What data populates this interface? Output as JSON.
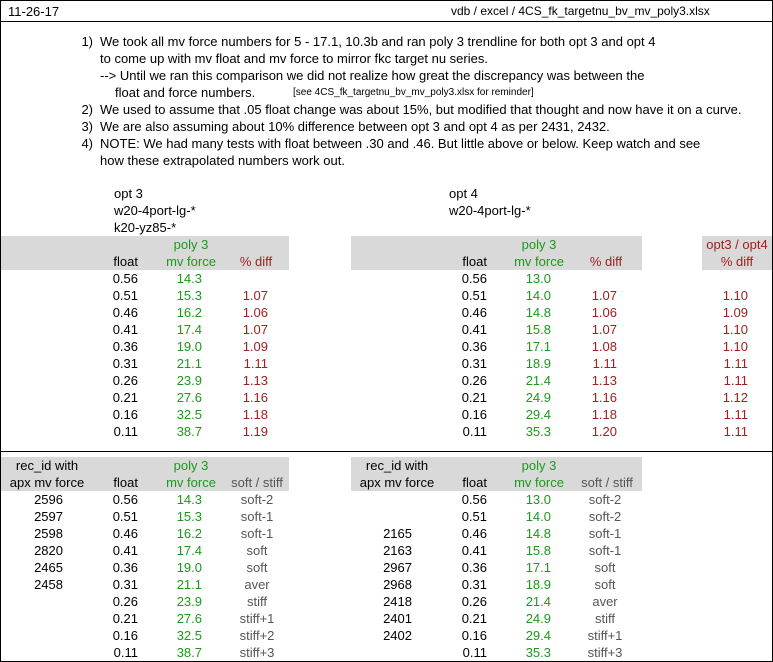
{
  "header": {
    "date": "11-26-17",
    "path": "vdb / excel / 4CS_fk_targetnu_bv_mv_poly3.xlsx"
  },
  "notes": [
    {
      "num": "1)",
      "lines": [
        "We took all mv force numbers for 5 - 17.1, 10.3b and ran poly 3 trendline for both opt 3 and opt 4",
        "to come up with mv float and mv force to mirror fkc target nu series."
      ]
    },
    {
      "num": "",
      "lines": [
        "--> Until we ran this comparison we did not realize how great the discrepancy was between the"
      ]
    },
    {
      "num": "",
      "lines": [
        "float and force numbers."
      ],
      "small": "[see  4CS_fk_targetnu_bv_mv_poly3.xlsx  for reminder]"
    },
    {
      "num": "2)",
      "lines": [
        "We used to assume that .05 float change was about 15%, but modified that thought and now have it on a curve."
      ]
    },
    {
      "num": "3)",
      "lines": [
        "We are also assuming about 10% difference between opt 3 and opt 4 as per 2431, 2432."
      ]
    },
    {
      "num": "4)",
      "lines": [
        "NOTE: We had many tests with float between .30 and .46.  But little above or below.  Keep watch and see",
        "how these extrapolated numbers work out."
      ]
    }
  ],
  "opt3": {
    "title": "opt 3",
    "sub1": "w20-4port-lg-*",
    "sub2": "k20-yz85-*",
    "head_poly": "poly 3",
    "head_float": "float",
    "head_force": "mv force",
    "head_diff": "% diff",
    "rows": [
      {
        "float": "0.56",
        "force": "14.3",
        "diff": ""
      },
      {
        "float": "0.51",
        "force": "15.3",
        "diff": "1.07"
      },
      {
        "float": "0.46",
        "force": "16.2",
        "diff": "1.06"
      },
      {
        "float": "0.41",
        "force": "17.4",
        "diff": "1.07"
      },
      {
        "float": "0.36",
        "force": "19.0",
        "diff": "1.09"
      },
      {
        "float": "0.31",
        "force": "21.1",
        "diff": "1.11"
      },
      {
        "float": "0.26",
        "force": "23.9",
        "diff": "1.13"
      },
      {
        "float": "0.21",
        "force": "27.6",
        "diff": "1.16"
      },
      {
        "float": "0.16",
        "force": "32.5",
        "diff": "1.18"
      },
      {
        "float": "0.11",
        "force": "38.7",
        "diff": "1.19"
      }
    ]
  },
  "opt4": {
    "title": "opt 4",
    "sub1": "w20-4port-lg-*",
    "head_poly": "poly 3",
    "head_float": "float",
    "head_force": "mv force",
    "head_diff": "% diff",
    "head_ratio1": "opt3 / opt4",
    "head_ratio2": "% diff",
    "rows": [
      {
        "float": "0.56",
        "force": "13.0",
        "diff": "",
        "ratio": ""
      },
      {
        "float": "0.51",
        "force": "14.0",
        "diff": "1.07",
        "ratio": "1.10"
      },
      {
        "float": "0.46",
        "force": "14.8",
        "diff": "1.06",
        "ratio": "1.09"
      },
      {
        "float": "0.41",
        "force": "15.8",
        "diff": "1.07",
        "ratio": "1.10"
      },
      {
        "float": "0.36",
        "force": "17.1",
        "diff": "1.08",
        "ratio": "1.10"
      },
      {
        "float": "0.31",
        "force": "18.9",
        "diff": "1.11",
        "ratio": "1.11"
      },
      {
        "float": "0.26",
        "force": "21.4",
        "diff": "1.13",
        "ratio": "1.11"
      },
      {
        "float": "0.21",
        "force": "24.9",
        "diff": "1.16",
        "ratio": "1.12"
      },
      {
        "float": "0.16",
        "force": "29.4",
        "diff": "1.18",
        "ratio": "1.11"
      },
      {
        "float": "0.11",
        "force": "35.3",
        "diff": "1.20",
        "ratio": "1.11"
      }
    ]
  },
  "rec3": {
    "head_rec1": "rec_id with",
    "head_rec2": "apx mv force",
    "head_poly": "poly 3",
    "head_float": "float",
    "head_force": "mv force",
    "head_ss": "soft / stiff",
    "rows": [
      {
        "rec": "2596",
        "float": "0.56",
        "force": "14.3",
        "ss": "soft-2"
      },
      {
        "rec": "2597",
        "float": "0.51",
        "force": "15.3",
        "ss": "soft-1"
      },
      {
        "rec": "2598",
        "float": "0.46",
        "force": "16.2",
        "ss": "soft-1"
      },
      {
        "rec": "2820",
        "float": "0.41",
        "force": "17.4",
        "ss": "soft"
      },
      {
        "rec": "2465",
        "float": "0.36",
        "force": "19.0",
        "ss": "soft"
      },
      {
        "rec": "2458",
        "float": "0.31",
        "force": "21.1",
        "ss": "aver"
      },
      {
        "rec": "",
        "float": "0.26",
        "force": "23.9",
        "ss": "stiff"
      },
      {
        "rec": "",
        "float": "0.21",
        "force": "27.6",
        "ss": "stiff+1"
      },
      {
        "rec": "",
        "float": "0.16",
        "force": "32.5",
        "ss": "stiff+2"
      },
      {
        "rec": "",
        "float": "0.11",
        "force": "38.7",
        "ss": "stiff+3"
      }
    ]
  },
  "rec4": {
    "head_rec1": "rec_id with",
    "head_rec2": "apx mv force",
    "head_poly": "poly 3",
    "head_float": "float",
    "head_force": "mv force",
    "head_ss": "soft / stiff",
    "rows": [
      {
        "rec": "",
        "float": "0.56",
        "force": "13.0",
        "ss": "soft-2"
      },
      {
        "rec": "",
        "float": "0.51",
        "force": "14.0",
        "ss": "soft-2"
      },
      {
        "rec": "2165",
        "float": "0.46",
        "force": "14.8",
        "ss": "soft-1"
      },
      {
        "rec": "2163",
        "float": "0.41",
        "force": "15.8",
        "ss": "soft-1"
      },
      {
        "rec": "2967",
        "float": "0.36",
        "force": "17.1",
        "ss": "soft"
      },
      {
        "rec": "2968",
        "float": "0.31",
        "force": "18.9",
        "ss": "soft"
      },
      {
        "rec": "2418",
        "float": "0.26",
        "force": "21.4",
        "ss": "aver"
      },
      {
        "rec": "2401",
        "float": "0.21",
        "force": "24.9",
        "ss": "stiff"
      },
      {
        "rec": "2402",
        "float": "0.16",
        "force": "29.4",
        "ss": "stiff+1"
      },
      {
        "rec": "",
        "float": "0.11",
        "force": "35.3",
        "ss": "stiff+3"
      }
    ]
  },
  "colors": {
    "green": "#1a9a1a",
    "red": "#a02020",
    "header_fill": "#d9d9d9"
  }
}
